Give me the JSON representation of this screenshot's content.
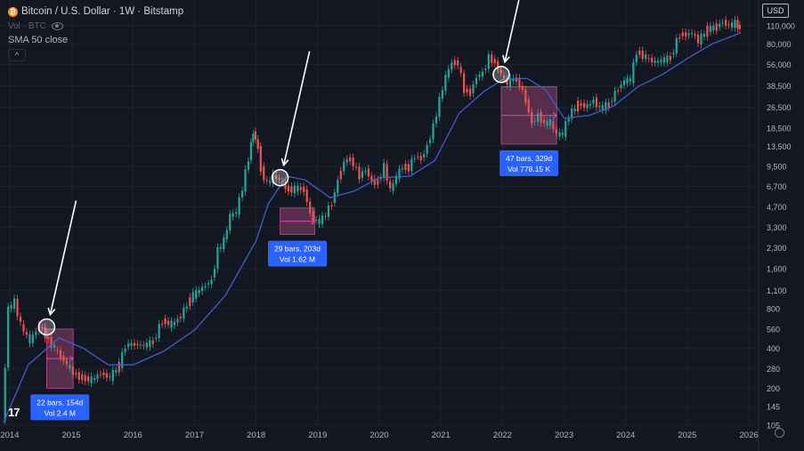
{
  "legend": {
    "symbol_title": "Bitcoin / U.S. Dollar · 1W · Bitstamp",
    "coin_glyph": "₿",
    "volume_label": "Vol · BTC",
    "indicator_label": "SMA 50 close",
    "collapse_glyph": "^"
  },
  "currency_button": "USD",
  "tv_logo_text": "17",
  "colors": {
    "background": "#131722",
    "candle_up": "#26a69a",
    "candle_down": "#ef5350",
    "sma": "#3f5fc4",
    "annotation_fill": "#8e3f6e",
    "annotation_label": "#2962ff"
  },
  "chart_data": {
    "type": "candlestick",
    "title": "Bitcoin / U.S. Dollar · 1W · Bitstamp",
    "y_scale": "log",
    "ylim": [
      105,
      130000
    ],
    "y_ticks": [
      "110,000",
      "80,000",
      "56,000",
      "38,500",
      "26,500",
      "18,500",
      "13,500",
      "9,500",
      "6,700",
      "4,700",
      "3,300",
      "2,300",
      "1,600",
      "1,100",
      "800",
      "560",
      "400",
      "280",
      "200",
      "145",
      "105"
    ],
    "x_ticks": [
      "2014",
      "2015",
      "2016",
      "2017",
      "2018",
      "2019",
      "2020",
      "2021",
      "2022",
      "2023",
      "2024",
      "2025",
      "2026"
    ],
    "xlim": [
      2013.9,
      2026.1
    ],
    "series": [
      {
        "name": "BTCUSD",
        "kind": "price",
        "x": [
          2013.9,
          2014.0,
          2014.1,
          2014.2,
          2014.35,
          2014.5,
          2014.6,
          2014.75,
          2014.85,
          2015.0,
          2015.1,
          2015.2,
          2015.35,
          2015.5,
          2015.65,
          2015.8,
          2015.9,
          2016.0,
          2016.2,
          2016.35,
          2016.5,
          2016.65,
          2016.8,
          2016.95,
          2017.0,
          2017.1,
          2017.2,
          2017.3,
          2017.4,
          2017.5,
          2017.6,
          2017.7,
          2017.8,
          2017.9,
          2017.97,
          2018.05,
          2018.1,
          2018.2,
          2018.3,
          2018.4,
          2018.5,
          2018.6,
          2018.7,
          2018.8,
          2018.9,
          2019.0,
          2019.1,
          2019.25,
          2019.4,
          2019.5,
          2019.6,
          2019.7,
          2019.8,
          2019.9,
          2020.0,
          2020.1,
          2020.2,
          2020.3,
          2020.4,
          2020.5,
          2020.6,
          2020.7,
          2020.8,
          2020.9,
          2021.0,
          2021.1,
          2021.2,
          2021.3,
          2021.4,
          2021.5,
          2021.6,
          2021.7,
          2021.8,
          2021.9,
          2022.0,
          2022.1,
          2022.2,
          2022.3,
          2022.4,
          2022.5,
          2022.6,
          2022.7,
          2022.8,
          2022.9,
          2023.0,
          2023.1,
          2023.25,
          2023.4,
          2023.5,
          2023.6,
          2023.75,
          2023.9,
          2024.0,
          2024.1,
          2024.2,
          2024.35,
          2024.5,
          2024.6,
          2024.75,
          2024.9,
          2025.0,
          2025.1,
          2025.2,
          2025.35,
          2025.5,
          2025.6,
          2025.7,
          2025.8,
          2025.87
        ],
        "y": [
          110,
          800,
          900,
          600,
          450,
          600,
          500,
          400,
          350,
          280,
          250,
          240,
          230,
          260,
          240,
          300,
          420,
          430,
          420,
          450,
          650,
          600,
          700,
          950,
          1000,
          1100,
          1200,
          1300,
          2200,
          2600,
          4000,
          4300,
          6500,
          11000,
          17500,
          13000,
          9000,
          7000,
          8000,
          7500,
          6500,
          6300,
          6500,
          6300,
          4200,
          3600,
          3800,
          5000,
          9000,
          11000,
          10000,
          8000,
          9000,
          7300,
          7200,
          9500,
          6200,
          8000,
          9500,
          9200,
          11500,
          10800,
          13500,
          19000,
          30000,
          45000,
          58000,
          57000,
          36000,
          34000,
          45000,
          48000,
          63000,
          58000,
          47000,
          40000,
          44000,
          40000,
          30000,
          20000,
          23000,
          20000,
          20500,
          16500,
          16800,
          23000,
          28000,
          27000,
          30000,
          26000,
          28000,
          37000,
          42000,
          43000,
          70000,
          63000,
          58000,
          60000,
          63000,
          95000,
          94000,
          97000,
          84000,
          103000,
          108000,
          118000,
          110000,
          115000,
          105000
        ]
      },
      {
        "name": "SMA 50 close",
        "kind": "sma",
        "x": [
          2013.9,
          2014.3,
          2014.8,
          2015.2,
          2015.6,
          2016.0,
          2016.5,
          2017.0,
          2017.5,
          2018.0,
          2018.2,
          2018.5,
          2018.8,
          2019.2,
          2019.6,
          2020.0,
          2020.5,
          2020.9,
          2021.3,
          2021.7,
          2022.0,
          2022.4,
          2022.7,
          2023.0,
          2023.4,
          2023.8,
          2024.2,
          2024.6,
          2025.0,
          2025.4,
          2025.87
        ],
        "y": [
          110,
          300,
          480,
          400,
          300,
          300,
          380,
          550,
          1000,
          2600,
          5000,
          8000,
          7500,
          5500,
          6200,
          7800,
          8000,
          10500,
          24000,
          35000,
          43000,
          44000,
          36000,
          22000,
          23000,
          27000,
          38000,
          47000,
          62000,
          80000,
          97000
        ]
      }
    ],
    "markers": [
      {
        "x": 2014.6,
        "y": 580
      },
      {
        "x": 2018.39,
        "y": 7800
      },
      {
        "x": 2021.98,
        "y": 47000
      }
    ],
    "annotations": [
      {
        "x_start": 2014.6,
        "x_end": 2015.03,
        "y_top": 560,
        "y_bottom": 200,
        "line1": "22 bars, 154d",
        "line2": "Vol 2.4 M"
      },
      {
        "x_start": 2018.39,
        "x_end": 2018.95,
        "y_top": 4600,
        "y_bottom": 2900,
        "line1": "29 bars, 203d",
        "line2": "Vol 1.62 M"
      },
      {
        "x_start": 2021.98,
        "x_end": 2022.88,
        "y_top": 38000,
        "y_bottom": 14000,
        "line1": "47 bars, 329d",
        "line2": "Vol 778.15 K"
      }
    ]
  }
}
